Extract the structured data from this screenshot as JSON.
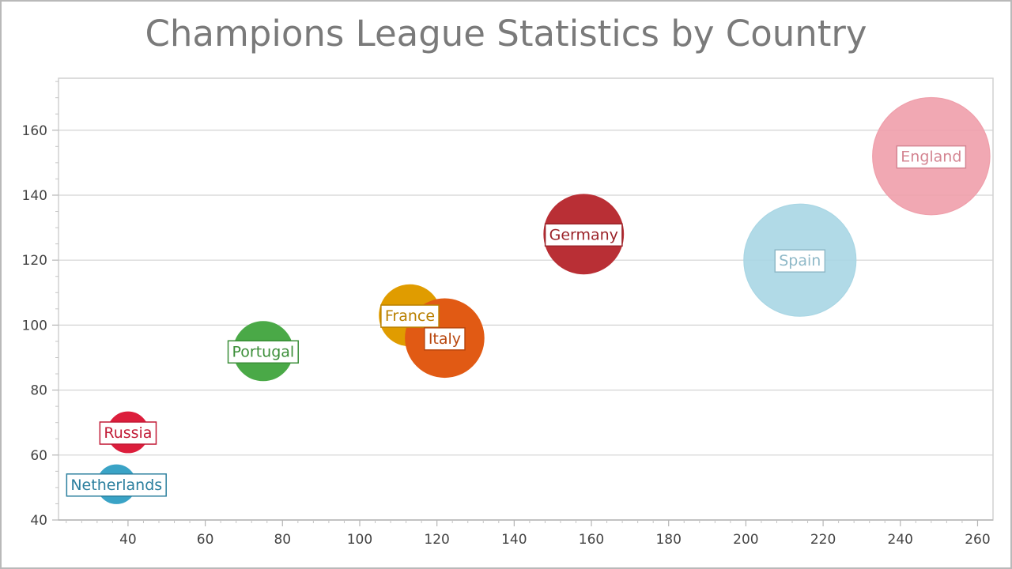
{
  "chart_data": {
    "type": "scatter",
    "title": "Champions League Statistics by Country",
    "xlabel": "",
    "ylabel": "",
    "xlim": [
      22,
      264
    ],
    "ylim": [
      40,
      176
    ],
    "x_ticks": [
      40,
      60,
      80,
      100,
      120,
      140,
      160,
      180,
      200,
      220,
      240,
      260
    ],
    "y_ticks": [
      40,
      60,
      80,
      100,
      120,
      140,
      160
    ],
    "grid": "horizontal",
    "legend": "none",
    "series": [
      {
        "label": "Netherlands",
        "x": 37,
        "y": 51,
        "size": 38,
        "color": "#3aa3c6",
        "fill_opacity": 1.0,
        "text_color": "#2b7f9e"
      },
      {
        "label": "Russia",
        "x": 40,
        "y": 67,
        "size": 40,
        "color": "#dc1e3c",
        "fill_opacity": 1.0,
        "text_color": "#c21a36"
      },
      {
        "label": "Portugal",
        "x": 75,
        "y": 92,
        "size": 58,
        "color": "#4aa947",
        "fill_opacity": 1.0,
        "text_color": "#3b8e38"
      },
      {
        "label": "France",
        "x": 113,
        "y": 103,
        "size": 60,
        "color": "#e09c00",
        "fill_opacity": 1.0,
        "text_color": "#b98000"
      },
      {
        "label": "Italy",
        "x": 122,
        "y": 96,
        "size": 77,
        "color": "#e15a14",
        "fill_opacity": 1.0,
        "text_color": "#b8470e"
      },
      {
        "label": "Germany",
        "x": 158,
        "y": 128,
        "size": 78,
        "color": "#b92f35",
        "fill_opacity": 1.0,
        "text_color": "#9b2329"
      },
      {
        "label": "Spain",
        "x": 214,
        "y": 120,
        "size": 110,
        "color": "#a9d6e4",
        "fill_opacity": 0.9,
        "text_color": "#8fb9c8"
      },
      {
        "label": "England",
        "x": 248,
        "y": 152,
        "size": 115,
        "color": "#ef9fab",
        "fill_opacity": 0.9,
        "text_color": "#d48592"
      }
    ]
  }
}
